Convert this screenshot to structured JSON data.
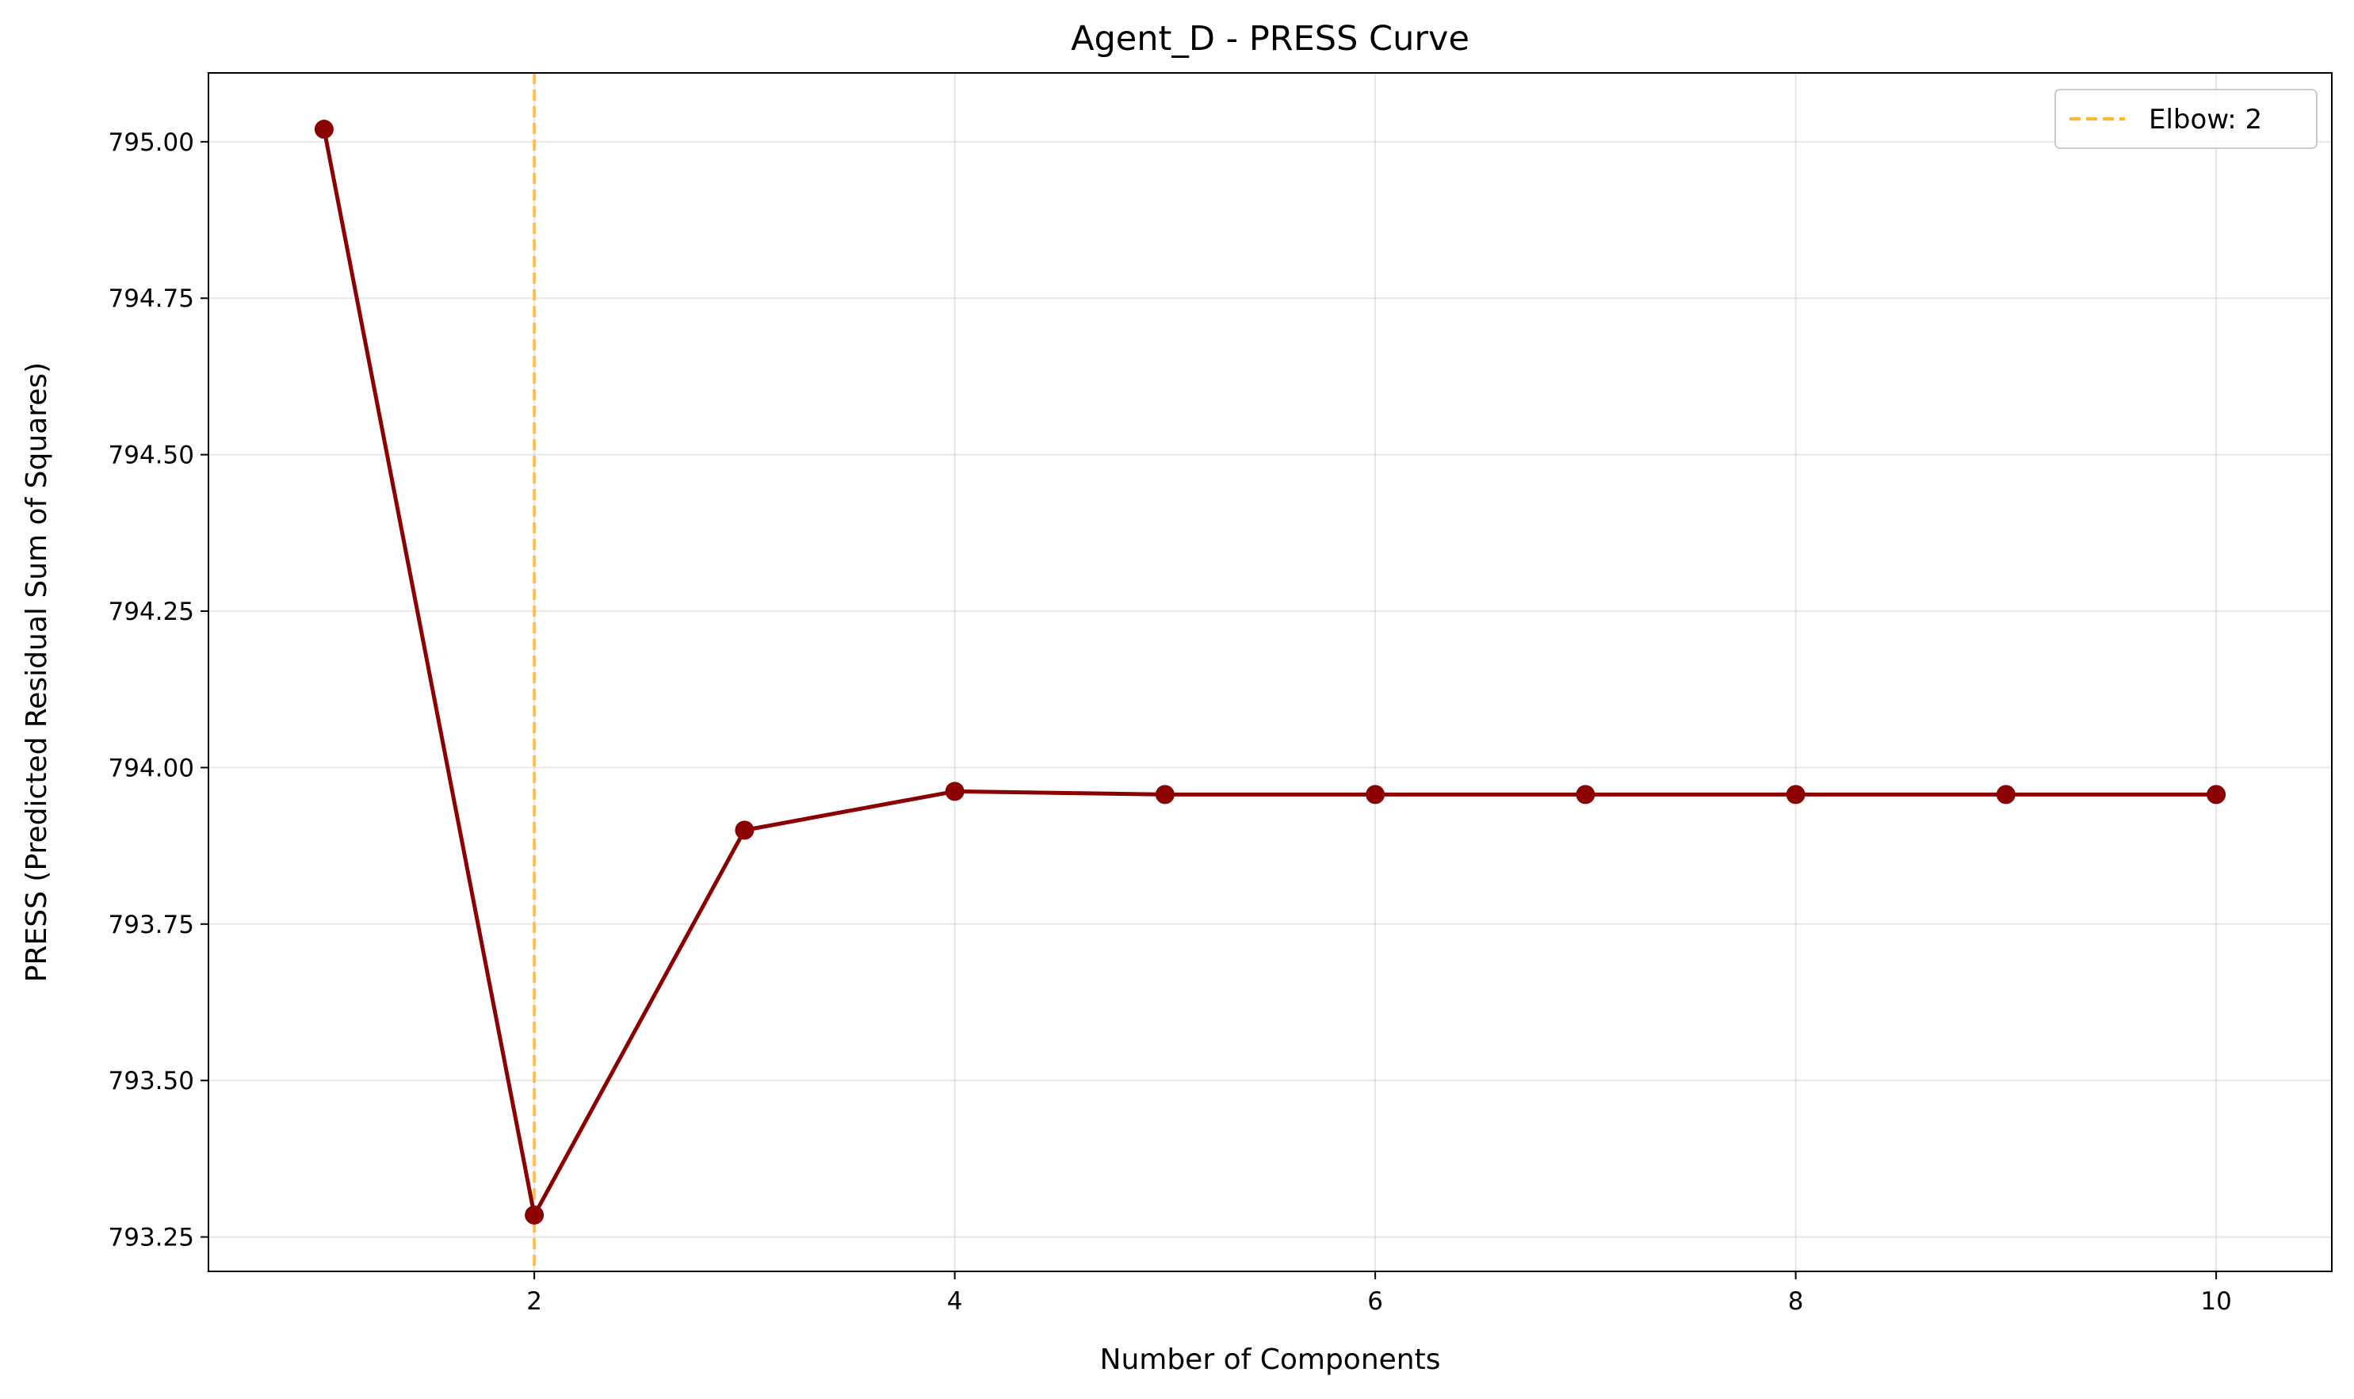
{
  "chart_data": {
    "type": "line",
    "title": "Agent_D - PRESS Curve",
    "xlabel": "Number of Components",
    "ylabel": "PRESS (Predicted Residual Sum of Squares)",
    "xlim": [
      0.45,
      10.55
    ],
    "ylim": [
      793.195,
      795.11
    ],
    "xticks": [
      2,
      4,
      6,
      8,
      10
    ],
    "xtick_labels": [
      "2",
      "4",
      "6",
      "8",
      "10"
    ],
    "yticks": [
      793.25,
      793.5,
      793.75,
      794.0,
      794.25,
      794.5,
      794.75,
      795.0
    ],
    "ytick_labels": [
      "793.25",
      "793.50",
      "793.75",
      "794.00",
      "794.25",
      "794.50",
      "794.75",
      "795.00"
    ],
    "grid": true,
    "legend_position": "top-right",
    "series": [
      {
        "x": [
          1,
          2,
          3,
          4,
          5,
          6,
          7,
          8,
          9,
          10
        ],
        "values": [
          795.02,
          793.285,
          793.9,
          793.962,
          793.957,
          793.957,
          793.957,
          793.957,
          793.957,
          793.957
        ],
        "color": "#8b0000",
        "marker": "circle"
      }
    ],
    "annotations": [
      {
        "type": "vline",
        "x": 2,
        "label": "Elbow: 2",
        "color": "#ffb733",
        "style": "dashed"
      }
    ]
  }
}
